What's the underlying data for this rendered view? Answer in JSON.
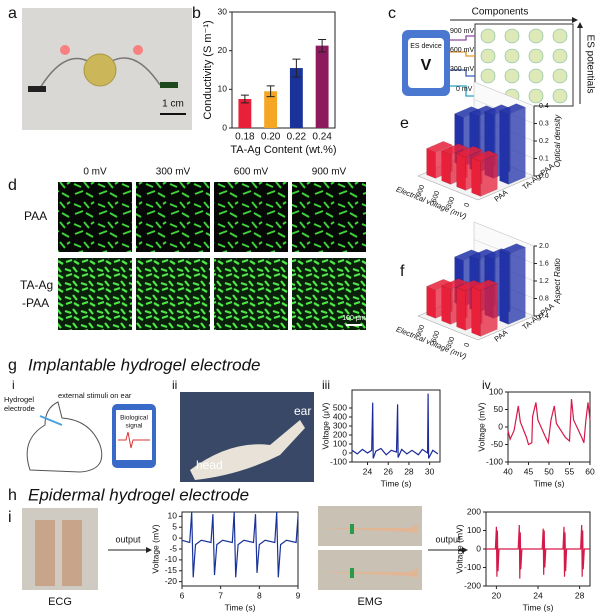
{
  "figure": {
    "panel_labels": [
      "a",
      "b",
      "c",
      "d",
      "e",
      "f",
      "g",
      "h",
      "i"
    ],
    "a": {
      "scale": "1 cm"
    },
    "c": {
      "components": "Components",
      "potentials": "ES potentials",
      "device": "ES device",
      "device_symbol": "V",
      "voltages": [
        "900 mV",
        "600 mV",
        "300 mV",
        "0 mV"
      ]
    },
    "d": {
      "columns": [
        "0 mV",
        "300 mV",
        "600 mV",
        "900 mV"
      ],
      "rows": [
        [
          "PAA"
        ],
        [
          "TA-Ag",
          "-PAA"
        ]
      ],
      "scale": "100 μm"
    },
    "g": {
      "title": "Implantable hydrogel electrode",
      "subpanels": [
        "i",
        "ii",
        "iii",
        "iv"
      ],
      "hydrogel": [
        "Hydrogel",
        "electrode"
      ],
      "stimuli": "external stimuli on ear",
      "signal": [
        "Biological",
        "signal"
      ],
      "ear": "ear",
      "head": "head"
    },
    "h": {
      "title": "Epidermal hydrogel electrode",
      "subpanel": "i",
      "ecg": "ECG",
      "emg": "EMG",
      "output": [
        "output",
        "output"
      ]
    }
  },
  "chart_data": [
    {
      "type": "bar",
      "ylabel": "Conductivity (S m⁻¹)",
      "xlabel": "TA-Ag Content (wt.%)",
      "categories": [
        "0.18",
        "0.20",
        "0.22",
        "0.24"
      ],
      "values": [
        7.5,
        9.5,
        15.5,
        21.3
      ],
      "errors": [
        1.0,
        1.4,
        2.3,
        1.6
      ],
      "colors": [
        "#e8203a",
        "#f5a623",
        "#1a3399",
        "#8e1a5e"
      ],
      "ylim": [
        0,
        30
      ],
      "yticks": [
        0,
        10,
        20,
        30
      ]
    },
    {
      "type": "bar3d",
      "zlabel": "Optical density",
      "xlabel": "Electrical voltage (mV)",
      "categories": [
        "0",
        "300",
        "600",
        "900"
      ],
      "series": [
        {
          "name": "PAA",
          "color": "#e8203a",
          "values": [
            0.2,
            0.19,
            0.17,
            0.15
          ]
        },
        {
          "name": "TA-Ag-PAA",
          "color": "#2233aa",
          "values": [
            0.4,
            0.36,
            0.32,
            0.28
          ]
        }
      ],
      "zlim": [
        0,
        0.4
      ],
      "zticks": [
        {
          "value": 0,
          "label": "0.0"
        },
        0.1,
        0.2,
        0.3,
        0.4
      ]
    },
    {
      "type": "bar3d",
      "zlabel": "Aspect Ratio",
      "xlabel": "Electrical voltage (mV)",
      "categories": [
        "0",
        "300",
        "600",
        "900"
      ],
      "series": [
        {
          "name": "PAA",
          "color": "#e8203a",
          "values": [
            1.45,
            1.3,
            1.2,
            1.05
          ]
        },
        {
          "name": "TA-Ag-PAA",
          "color": "#2233aa",
          "values": [
            2.0,
            1.75,
            1.6,
            1.45
          ]
        }
      ],
      "zlim": [
        0.4,
        2.0
      ],
      "zticks": [
        0.4,
        0.8,
        1.2,
        1.6,
        {
          "value": 2,
          "label": "2.0"
        }
      ]
    },
    {
      "type": "line",
      "ylabel": "Voltage (μV)",
      "xlabel": "Time (s)",
      "color": "#1a2a9a",
      "x": [
        22.5,
        23,
        23.5,
        24,
        24.4,
        24.5,
        24.55,
        24.8,
        25.3,
        25.8,
        26.3,
        26.8,
        26.9,
        26.95,
        27.3,
        27.8,
        28.3,
        28.9,
        29.3,
        29.8,
        29.85,
        29.9,
        30.3,
        30.8
      ],
      "values": [
        30,
        -10,
        40,
        0,
        30,
        560,
        -60,
        20,
        50,
        -20,
        30,
        10,
        540,
        -50,
        40,
        -10,
        30,
        -20,
        40,
        0,
        660,
        -60,
        30,
        -10
      ],
      "xlim": [
        22.5,
        31
      ],
      "xticks": [
        24,
        26,
        28,
        30
      ],
      "ylim": [
        -100,
        700
      ],
      "yticks": [
        -100,
        0,
        100,
        200,
        300,
        400,
        500
      ]
    },
    {
      "type": "line",
      "ylabel": "Voltage (mV)",
      "xlabel": "Time (s)",
      "color": "#d41a4a",
      "x": [
        40,
        40.5,
        41.5,
        42.5,
        43,
        44.5,
        45,
        45.8,
        46,
        46.8,
        47.3,
        49,
        49.8,
        50.5,
        51.3,
        51.8,
        54,
        55,
        55.5,
        56,
        58,
        58.5,
        59,
        59.5,
        60
      ],
      "values": [
        -10,
        -35,
        -10,
        60,
        15,
        -30,
        -50,
        -45,
        30,
        70,
        20,
        -25,
        -45,
        20,
        60,
        10,
        -30,
        -40,
        80,
        20,
        -30,
        -45,
        20,
        70,
        20
      ],
      "xlim": [
        40,
        60
      ],
      "xticks": [
        40,
        45,
        50,
        55,
        60
      ],
      "ylim": [
        -100,
        100
      ],
      "yticks": [
        -100,
        -50,
        0,
        50,
        100
      ]
    },
    {
      "type": "line",
      "ylabel": "Voltage (mV)",
      "xlabel": "Time (s)",
      "color": "#1a3399",
      "x": [
        6,
        6.2,
        6.25,
        6.29,
        6.35,
        6.5,
        6.75,
        6.8,
        6.84,
        6.9,
        7.05,
        7.3,
        7.35,
        7.39,
        7.45,
        7.6,
        7.85,
        7.9,
        7.94,
        8.0,
        8.15,
        8.4,
        8.45,
        8.49,
        8.55,
        8.7,
        8.95,
        9
      ],
      "values": [
        -1,
        -2,
        12,
        -18,
        -3,
        -1,
        -2,
        11,
        -17,
        -3,
        -1,
        -2,
        12,
        -18,
        -3,
        -1,
        -2,
        11,
        -16,
        -3,
        -1,
        -2,
        12,
        -18,
        -3,
        -1,
        -2,
        10
      ],
      "xlim": [
        6,
        9
      ],
      "xticks": [
        6,
        7,
        8,
        9
      ],
      "ylim": [
        -22,
        12
      ],
      "yticks": [
        -20,
        -15,
        -10,
        -5,
        0,
        5,
        10
      ]
    },
    {
      "type": "line",
      "ylabel": "Voltage (mV)",
      "xlabel": "Time (s)",
      "color": "#d41a4a",
      "x": [
        19,
        19.9,
        20,
        20.05,
        20.1,
        20.15,
        20.25,
        22.1,
        22.2,
        22.25,
        22.3,
        22.35,
        22.45,
        24.4,
        24.5,
        24.55,
        24.6,
        24.65,
        24.75,
        26.4,
        26.5,
        26.55,
        26.6,
        26.65,
        26.75,
        28.1,
        28.2,
        28.25,
        28.3,
        28.35,
        28.45,
        29
      ],
      "values": [
        0,
        0,
        120,
        -150,
        100,
        -120,
        0,
        0,
        130,
        -160,
        90,
        -110,
        0,
        0,
        110,
        -140,
        100,
        -100,
        0,
        0,
        120,
        -150,
        90,
        -120,
        0,
        0,
        130,
        -150,
        100,
        -110,
        0,
        0
      ],
      "xlim": [
        19,
        29
      ],
      "xticks": [
        20,
        24,
        28
      ],
      "ylim": [
        -200,
        200
      ],
      "yticks": [
        -200,
        -100,
        0,
        100,
        200
      ]
    }
  ]
}
